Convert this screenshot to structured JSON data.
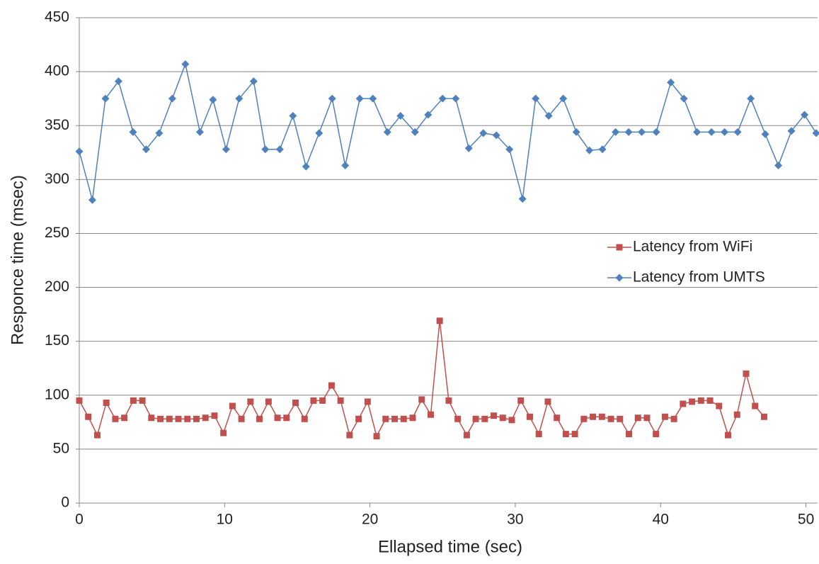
{
  "chart_data": {
    "type": "line",
    "x_label": "Ellapsed time (sec)",
    "y_label": "Responce time (msec)",
    "xlim": [
      0,
      50.8
    ],
    "xticks": [
      0,
      10,
      20,
      30,
      40,
      50
    ],
    "ylim": [
      0,
      450
    ],
    "yticks": [
      0,
      50,
      100,
      150,
      200,
      250,
      300,
      350,
      400,
      450
    ],
    "grid": true,
    "legend": "right",
    "series": [
      {
        "name": "Latency from WiFi",
        "color": "#c0504d",
        "marker": "square",
        "x": [
          0,
          0.62,
          1.24,
          1.86,
          2.48,
          3.1,
          3.72,
          4.34,
          4.96,
          5.58,
          6.2,
          6.82,
          7.44,
          8.06,
          8.68,
          9.3,
          9.92,
          10.54,
          11.16,
          11.78,
          12.4,
          13.02,
          13.64,
          14.26,
          14.88,
          15.5,
          16.12,
          16.74,
          17.36,
          17.98,
          18.6,
          19.22,
          19.84,
          20.46,
          21.08,
          21.7,
          22.32,
          22.94,
          23.56,
          24.18,
          24.8,
          25.42,
          26.04,
          26.66,
          27.28,
          27.9,
          28.52,
          29.14,
          29.76,
          30.38,
          31.0,
          31.62,
          32.24,
          32.86,
          33.48,
          34.1,
          34.72,
          35.34,
          35.96,
          36.58,
          37.2,
          37.82,
          38.44,
          39.06,
          39.68,
          40.3,
          40.92,
          41.54,
          42.16,
          42.78,
          43.4,
          44.02,
          44.64,
          45.26,
          45.88,
          46.5,
          47.12
        ],
        "values": [
          95,
          80,
          63,
          93,
          78,
          79,
          95,
          95,
          79,
          78,
          78,
          78,
          78,
          78,
          79,
          81,
          65,
          90,
          78,
          94,
          78,
          94,
          79,
          79,
          93,
          78,
          95,
          95,
          109,
          95,
          63,
          78,
          94,
          62,
          78,
          78,
          78,
          79,
          96,
          82,
          169,
          95,
          78,
          63,
          78,
          78,
          81,
          79,
          77,
          95,
          80,
          64,
          94,
          79,
          64,
          64,
          78,
          80,
          80,
          78,
          78,
          64,
          79,
          79,
          64,
          80,
          78,
          92,
          94,
          95,
          95,
          90,
          63,
          82,
          120,
          90,
          80
        ]
      },
      {
        "name": "Latency from UMTS",
        "color": "#4f81bd",
        "marker": "diamond",
        "x": [
          0,
          0.9,
          1.8,
          2.7,
          3.7,
          4.6,
          5.5,
          6.4,
          7.3,
          8.3,
          9.2,
          10.1,
          11.0,
          12.0,
          12.8,
          13.8,
          14.7,
          15.6,
          16.5,
          17.4,
          18.3,
          19.3,
          20.2,
          21.2,
          22.1,
          23.1,
          24.0,
          25.0,
          25.9,
          26.8,
          27.8,
          28.7,
          29.6,
          30.5,
          31.4,
          32.3,
          33.3,
          34.2,
          35.1,
          36.0,
          36.9,
          37.8,
          38.7,
          39.7,
          40.7,
          41.6,
          42.5,
          43.5,
          44.4,
          45.3,
          46.2,
          47.2,
          48.1,
          49.0,
          49.9,
          50.7
        ],
        "values": [
          326,
          281,
          375,
          391,
          344,
          328,
          343,
          375,
          407,
          344,
          374,
          328,
          375,
          391,
          328,
          328,
          359,
          312,
          343,
          375,
          313,
          375,
          375,
          344,
          359,
          344,
          360,
          375,
          375,
          329,
          343,
          341,
          328,
          282,
          375,
          359,
          375,
          344,
          327,
          328,
          344,
          344,
          344,
          344,
          390,
          375,
          344,
          344,
          344,
          344,
          375,
          342,
          313,
          345,
          360,
          343
        ]
      }
    ]
  }
}
